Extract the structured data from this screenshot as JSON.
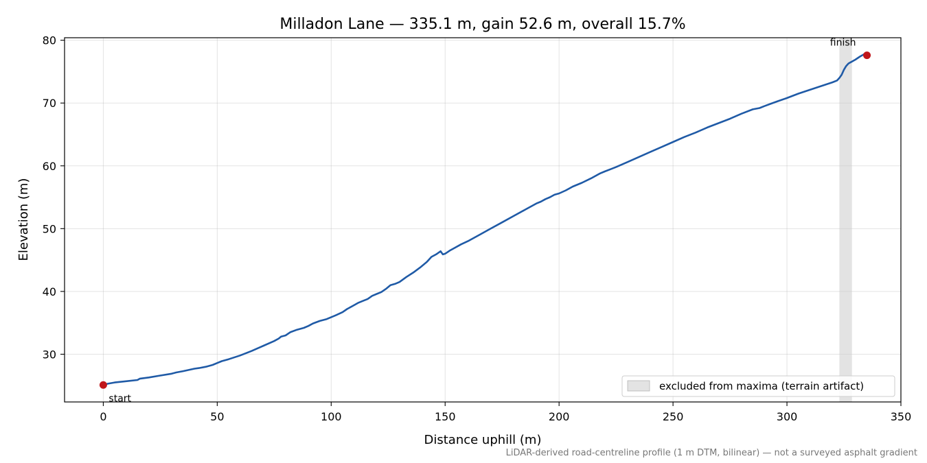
{
  "chart_data": {
    "type": "line",
    "title": "Milladon Lane — 335.1 m, gain 52.6 m, overall 15.7%",
    "xlabel": "Distance uphill (m)",
    "ylabel": "Elevation (m)",
    "xlim": [
      -17,
      350
    ],
    "ylim": [
      22.4,
      80.4
    ],
    "xticks": [
      0,
      50,
      100,
      150,
      200,
      250,
      300,
      350
    ],
    "yticks": [
      30,
      40,
      50,
      60,
      70,
      80
    ],
    "grid": true,
    "legend": {
      "placement": "lower-right",
      "label": "excluded from maxima (terrain artifact)"
    },
    "excluded_band": [
      323,
      328.5
    ],
    "series": [
      {
        "color": "#1f5aa6",
        "x": [
          0,
          2,
          5,
          10,
          15,
          16,
          20,
          25,
          30,
          32,
          35,
          40,
          42,
          45,
          48,
          50,
          52,
          55,
          60,
          65,
          70,
          75,
          77,
          78,
          80,
          82,
          85,
          88,
          90,
          92,
          95,
          98,
          100,
          102,
          105,
          107,
          110,
          112,
          114,
          116,
          118,
          120,
          122,
          124,
          126,
          128,
          130,
          133,
          136,
          139,
          142,
          144,
          146,
          148,
          149,
          150,
          152,
          154,
          157,
          160,
          165,
          170,
          175,
          180,
          185,
          190,
          192,
          194,
          196,
          198,
          200,
          203,
          206,
          210,
          214,
          218,
          220,
          225,
          230,
          235,
          240,
          245,
          250,
          255,
          260,
          265,
          270,
          275,
          280,
          285,
          288,
          290,
          293,
          296,
          300,
          305,
          310,
          315,
          320,
          322,
          323,
          324,
          325,
          326,
          327,
          328,
          330,
          332,
          334,
          335.1
        ],
        "values": [
          25.1,
          25.3,
          25.5,
          25.7,
          25.9,
          26.1,
          26.3,
          26.6,
          26.9,
          27.1,
          27.3,
          27.7,
          27.8,
          28.0,
          28.3,
          28.6,
          28.9,
          29.2,
          29.8,
          30.5,
          31.3,
          32.1,
          32.5,
          32.8,
          33.0,
          33.5,
          33.9,
          34.2,
          34.5,
          34.9,
          35.3,
          35.6,
          35.9,
          36.2,
          36.7,
          37.2,
          37.8,
          38.2,
          38.5,
          38.8,
          39.3,
          39.6,
          39.9,
          40.4,
          41.0,
          41.2,
          41.5,
          42.3,
          43.0,
          43.8,
          44.7,
          45.5,
          45.9,
          46.4,
          45.9,
          46.0,
          46.5,
          46.9,
          47.5,
          48.0,
          49.0,
          50.0,
          51.0,
          52.0,
          53.0,
          54.0,
          54.3,
          54.7,
          55.0,
          55.4,
          55.6,
          56.1,
          56.7,
          57.3,
          58.0,
          58.8,
          59.1,
          59.8,
          60.6,
          61.4,
          62.2,
          63.0,
          63.8,
          64.6,
          65.3,
          66.1,
          66.8,
          67.5,
          68.3,
          69.0,
          69.2,
          69.5,
          69.9,
          70.3,
          70.8,
          71.5,
          72.1,
          72.7,
          73.3,
          73.6,
          74.0,
          74.5,
          75.3,
          75.9,
          76.3,
          76.5,
          76.9,
          77.4,
          77.8,
          77.6
        ]
      }
    ],
    "points": [
      {
        "label": "start",
        "x": 0,
        "y": 25.1,
        "color": "#c0161b"
      },
      {
        "label": "finish",
        "x": 335.1,
        "y": 77.6,
        "color": "#c0161b"
      }
    ],
    "footnote": "LiDAR-derived road-centreline profile (1 m DTM, bilinear) — not a surveyed asphalt gradient"
  }
}
